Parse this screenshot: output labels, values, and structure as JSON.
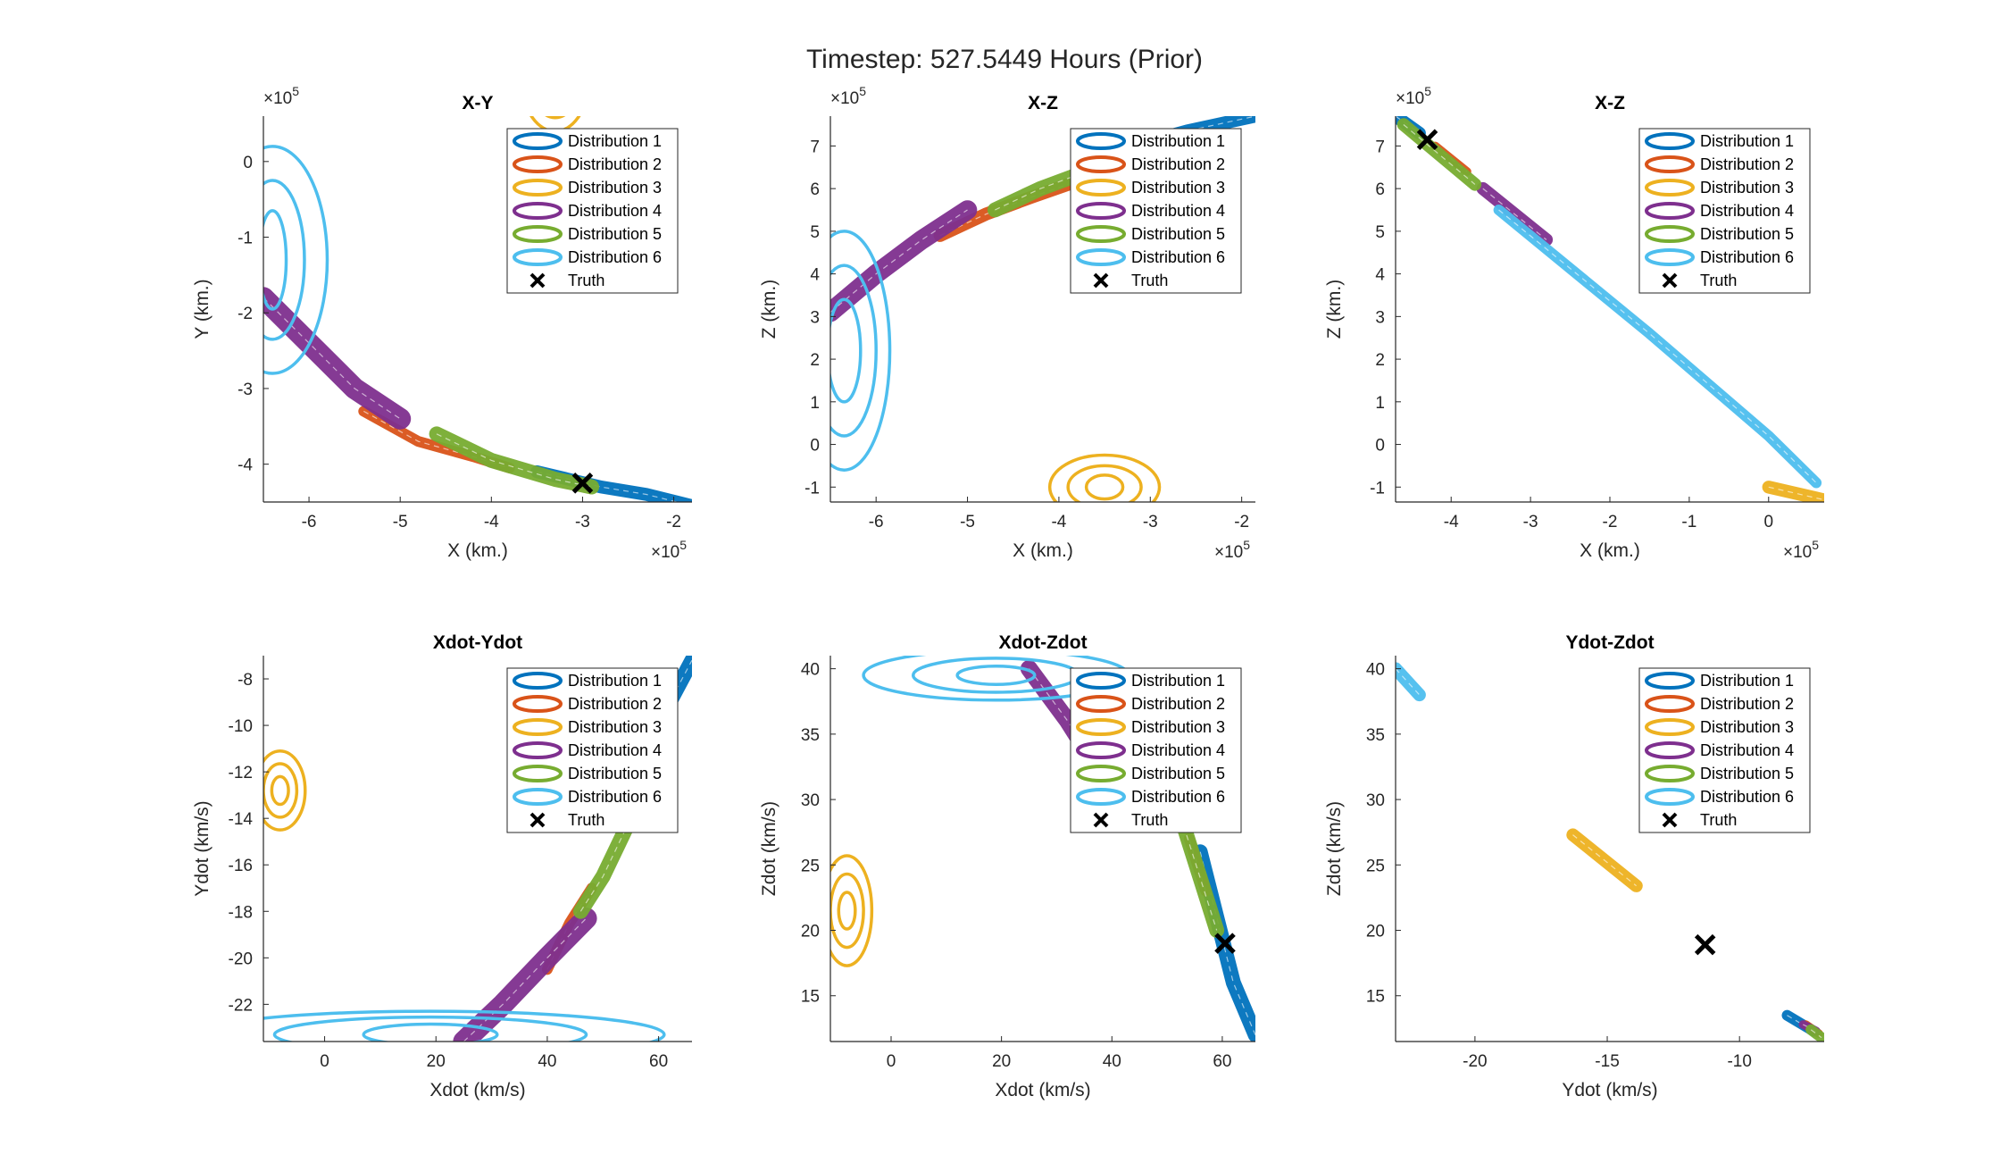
{
  "figure_title": "Timestep: 527.5449 Hours (Prior)",
  "legend": {
    "entries": [
      "Distribution 1",
      "Distribution 2",
      "Distribution 3",
      "Distribution 4",
      "Distribution 5",
      "Distribution 6",
      "Truth"
    ]
  },
  "colors": {
    "Distribution 1": "#0072BD",
    "Distribution 2": "#D95319",
    "Distribution 3": "#EDB120",
    "Distribution 4": "#7E2F8E",
    "Distribution 5": "#77AC30",
    "Distribution 6": "#4DBEEE",
    "Truth": "#000000"
  },
  "chart_data": [
    {
      "type": "scatter",
      "title": "X-Y",
      "xlabel": "X (km.)",
      "ylabel": "Y (km.)",
      "x_exponent": "×10^5",
      "y_exponent": "×10^5",
      "xlim": [
        -6.5,
        -1.8
      ],
      "ylim": [
        -4.5,
        0.6
      ],
      "xticks": [
        -6,
        -5,
        -4,
        -3,
        -2
      ],
      "yticks": [
        0,
        -1,
        -2,
        -3,
        -4
      ],
      "legend_position": "top-right",
      "series": [
        {
          "name": "Distribution 1",
          "kind": "band",
          "points": [
            [
              -3.5,
              -4.1
            ],
            [
              -2.8,
              -4.3
            ],
            [
              -2.3,
              -4.4
            ],
            [
              -1.8,
              -4.55
            ]
          ],
          "width": 6
        },
        {
          "name": "Distribution 2",
          "kind": "band",
          "points": [
            [
              -5.4,
              -3.3
            ],
            [
              -4.8,
              -3.7
            ],
            [
              -4.2,
              -3.9
            ],
            [
              -3.8,
              -4.05
            ]
          ],
          "width": 5
        },
        {
          "name": "Distribution 3",
          "kind": "ellipses",
          "center": [
            -3.3,
            1.0
          ],
          "rx": [
            0.35,
            0.25,
            0.15
          ],
          "ry": [
            0.6,
            0.42,
            0.25
          ],
          "angle": 0
        },
        {
          "name": "Distribution 4",
          "kind": "band",
          "points": [
            [
              -6.5,
              -1.8
            ],
            [
              -6.0,
              -2.4
            ],
            [
              -5.5,
              -3.0
            ],
            [
              -5.0,
              -3.4
            ]
          ],
          "width": 10
        },
        {
          "name": "Distribution 5",
          "kind": "band",
          "points": [
            [
              -4.6,
              -3.6
            ],
            [
              -4.0,
              -3.95
            ],
            [
              -3.3,
              -4.2
            ],
            [
              -2.9,
              -4.3
            ]
          ],
          "width": 7
        },
        {
          "name": "Distribution 6",
          "kind": "ellipses",
          "center": [
            -6.4,
            -1.3
          ],
          "rx": [
            0.6,
            0.35,
            0.15
          ],
          "ry": [
            1.5,
            1.05,
            0.65
          ],
          "angle": 0
        }
      ],
      "truth": [
        -3.0,
        -4.25
      ]
    },
    {
      "type": "scatter",
      "title": "X-Z",
      "xlabel": "X (km.)",
      "ylabel": "Z (km.)",
      "x_exponent": "×10^5",
      "y_exponent": "×10^5",
      "xlim": [
        -6.5,
        -1.85
      ],
      "ylim": [
        -1.35,
        7.7
      ],
      "xticks": [
        -6,
        -5,
        -4,
        -3,
        -2
      ],
      "yticks": [
        7,
        6,
        5,
        4,
        3,
        2,
        1,
        0,
        -1
      ],
      "legend_position": "top-right",
      "series": [
        {
          "name": "Distribution 1",
          "kind": "band",
          "points": [
            [
              -3.8,
              6.5
            ],
            [
              -3.2,
              7.0
            ],
            [
              -2.6,
              7.35
            ],
            [
              -1.85,
              7.7
            ]
          ],
          "width": 6
        },
        {
          "name": "Distribution 2",
          "kind": "band",
          "points": [
            [
              -5.3,
              4.9
            ],
            [
              -4.8,
              5.4
            ],
            [
              -4.3,
              5.8
            ],
            [
              -3.9,
              6.1
            ]
          ],
          "width": 6
        },
        {
          "name": "Distribution 3",
          "kind": "ellipses",
          "center": [
            -3.5,
            -1.0
          ],
          "rx": [
            0.6,
            0.4,
            0.2
          ],
          "ry": [
            0.75,
            0.5,
            0.28
          ],
          "angle": 0
        },
        {
          "name": "Distribution 4",
          "kind": "band",
          "points": [
            [
              -6.5,
              3.1
            ],
            [
              -6.0,
              4.0
            ],
            [
              -5.5,
              4.8
            ],
            [
              -5.0,
              5.5
            ]
          ],
          "width": 9
        },
        {
          "name": "Distribution 5",
          "kind": "band",
          "points": [
            [
              -4.7,
              5.5
            ],
            [
              -4.2,
              6.0
            ],
            [
              -3.7,
              6.4
            ],
            [
              -3.3,
              6.6
            ]
          ],
          "width": 7
        },
        {
          "name": "Distribution 6",
          "kind": "ellipses",
          "center": [
            -6.35,
            2.2
          ],
          "rx": [
            0.5,
            0.35,
            0.18
          ],
          "ry": [
            2.8,
            2.0,
            1.2
          ],
          "angle": 0
        }
      ],
      "truth": null
    },
    {
      "type": "scatter",
      "title": "X-Z",
      "xlabel": "X (km.)",
      "ylabel": "Z (km.)",
      "x_exponent": "×10^5",
      "y_exponent": "×10^5",
      "xlim": [
        -4.7,
        0.7
      ],
      "ylim": [
        -1.35,
        7.7
      ],
      "xticks": [
        -4,
        -3,
        -2,
        -1,
        0
      ],
      "yticks": [
        7,
        6,
        5,
        4,
        3,
        2,
        1,
        0,
        -1
      ],
      "legend_position": "top-right",
      "series": [
        {
          "name": "Distribution 1",
          "kind": "band",
          "points": [
            [
              -4.7,
              7.7
            ],
            [
              -4.4,
              7.3
            ]
          ],
          "width": 6
        },
        {
          "name": "Distribution 2",
          "kind": "band",
          "points": [
            [
              -4.2,
              7.0
            ],
            [
              -3.8,
              6.4
            ]
          ],
          "width": 4
        },
        {
          "name": "Distribution 3",
          "kind": "band",
          "points": [
            [
              0.0,
              -1.0
            ],
            [
              0.7,
              -1.3
            ]
          ],
          "width": 6
        },
        {
          "name": "Distribution 4",
          "kind": "band",
          "points": [
            [
              -3.6,
              6.0
            ],
            [
              -2.8,
              4.8
            ]
          ],
          "width": 6
        },
        {
          "name": "Distribution 5",
          "kind": "band",
          "points": [
            [
              -4.6,
              7.5
            ],
            [
              -3.7,
              6.1
            ]
          ],
          "width": 6
        },
        {
          "name": "Distribution 6",
          "kind": "band",
          "points": [
            [
              -3.4,
              5.5
            ],
            [
              -1.5,
              2.6
            ],
            [
              0.0,
              0.2
            ],
            [
              0.6,
              -0.9
            ]
          ],
          "width": 5
        }
      ],
      "truth": [
        -4.3,
        7.15
      ]
    },
    {
      "type": "scatter",
      "title": "Xdot-Ydot",
      "xlabel": "Xdot (km/s)",
      "ylabel": "Ydot (km/s)",
      "x_exponent": "",
      "y_exponent": "",
      "xlim": [
        -11,
        66
      ],
      "ylim": [
        -23.6,
        -7
      ],
      "xticks": [
        0,
        20,
        40,
        60
      ],
      "yticks": [
        -8,
        -10,
        -12,
        -14,
        -16,
        -18,
        -20,
        -22
      ],
      "legend_position": "top-right",
      "series": [
        {
          "name": "Distribution 1",
          "kind": "band",
          "points": [
            [
              54,
              -14.0
            ],
            [
              58,
              -11.5
            ],
            [
              62,
              -9.0
            ],
            [
              66,
              -7.2
            ]
          ],
          "width": 7
        },
        {
          "name": "Distribution 2",
          "kind": "band",
          "points": [
            [
              40,
              -20.5
            ],
            [
              44,
              -18.5
            ],
            [
              48,
              -17.0
            ]
          ],
          "width": 5
        },
        {
          "name": "Distribution 3",
          "kind": "ellipses",
          "center": [
            -8,
            -12.8
          ],
          "rx": [
            4.5,
            3,
            1.5
          ],
          "ry": [
            1.7,
            1.15,
            0.6
          ],
          "angle": 0
        },
        {
          "name": "Distribution 4",
          "kind": "band",
          "points": [
            [
              25,
              -23.6
            ],
            [
              32,
              -22.0
            ],
            [
              40,
              -20.0
            ],
            [
              47,
              -18.3
            ]
          ],
          "width": 10
        },
        {
          "name": "Distribution 5",
          "kind": "band",
          "points": [
            [
              46,
              -18.0
            ],
            [
              50,
              -16.5
            ],
            [
              54,
              -14.5
            ]
          ],
          "width": 7
        },
        {
          "name": "Distribution 6",
          "kind": "ellipses",
          "center": [
            19,
            -23.3
          ],
          "rx": [
            42,
            28,
            12
          ],
          "ry": [
            1.0,
            0.75,
            0.45
          ],
          "angle": 0
        }
      ],
      "truth": null
    },
    {
      "type": "scatter",
      "title": "Xdot-Zdot",
      "xlabel": "Xdot (km/s)",
      "ylabel": "Zdot (km/s)",
      "x_exponent": "",
      "y_exponent": "",
      "xlim": [
        -11,
        66
      ],
      "ylim": [
        11.5,
        41
      ],
      "xticks": [
        0,
        20,
        40,
        60
      ],
      "yticks": [
        40,
        35,
        30,
        25,
        20,
        15
      ],
      "legend_position": "top-right",
      "series": [
        {
          "name": "Distribution 1",
          "kind": "band",
          "points": [
            [
              56,
              26
            ],
            [
              59,
              21
            ],
            [
              62,
              16
            ],
            [
              66,
              12
            ]
          ],
          "width": 7
        },
        {
          "name": "Distribution 2",
          "kind": "band",
          "points": [
            [
              54,
              27
            ],
            [
              57,
              23
            ]
          ],
          "width": 5
        },
        {
          "name": "Distribution 3",
          "kind": "ellipses",
          "center": [
            -8,
            21.5
          ],
          "rx": [
            4.5,
            3,
            1.5
          ],
          "ry": [
            4.2,
            2.8,
            1.4
          ],
          "angle": 0
        },
        {
          "name": "Distribution 4",
          "kind": "band",
          "points": [
            [
              25,
              40
            ],
            [
              32,
              36
            ],
            [
              38,
              32
            ]
          ],
          "width": 8
        },
        {
          "name": "Distribution 5",
          "kind": "band",
          "points": [
            [
              53,
              28
            ],
            [
              56,
              24
            ],
            [
              59,
              20
            ]
          ],
          "width": 7
        },
        {
          "name": "Distribution 6",
          "kind": "ellipses",
          "center": [
            19,
            39.5
          ],
          "rx": [
            24,
            15,
            7
          ],
          "ry": [
            1.9,
            1.3,
            0.7
          ],
          "angle": 0
        }
      ],
      "truth": [
        60.5,
        19.0
      ]
    },
    {
      "type": "scatter",
      "title": "Ydot-Zdot",
      "xlabel": "Ydot (km/s)",
      "ylabel": "Zdot (km/s)",
      "x_exponent": "",
      "y_exponent": "",
      "xlim": [
        -23,
        -6.8
      ],
      "ylim": [
        11.5,
        41
      ],
      "xticks": [
        -20,
        -15,
        -10
      ],
      "yticks": [
        40,
        35,
        30,
        25,
        20,
        15
      ],
      "legend_position": "top-right",
      "series": [
        {
          "name": "Distribution 1",
          "kind": "band",
          "points": [
            [
              -8.2,
              13.5
            ],
            [
              -7.2,
              12.3
            ]
          ],
          "width": 5
        },
        {
          "name": "Distribution 2",
          "kind": "band",
          "points": [
            [
              -7.5,
              12.8
            ],
            [
              -7.0,
              12.1
            ]
          ],
          "width": 4
        },
        {
          "name": "Distribution 3",
          "kind": "band",
          "points": [
            [
              -16.3,
              27.3
            ],
            [
              -13.9,
              23.4
            ]
          ],
          "width": 6
        },
        {
          "name": "Distribution 4",
          "kind": "band",
          "points": [
            [
              -7.6,
              12.8
            ],
            [
              -7.1,
              12.3
            ]
          ],
          "width": 4
        },
        {
          "name": "Distribution 5",
          "kind": "band",
          "points": [
            [
              -7.3,
              12.4
            ],
            [
              -6.9,
              11.8
            ]
          ],
          "width": 5
        },
        {
          "name": "Distribution 6",
          "kind": "band",
          "points": [
            [
              -23,
              40
            ],
            [
              -22.1,
              38.0
            ]
          ],
          "width": 6
        }
      ],
      "truth": [
        -11.3,
        18.9
      ]
    }
  ]
}
